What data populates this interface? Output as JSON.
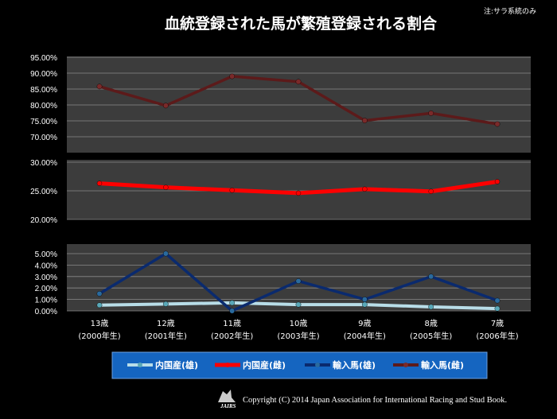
{
  "title": "血統登録された馬が繁殖登録される割合",
  "note": "注:サラ系統のみ",
  "copyright": "Copyright (C) 2014 Japan Association for International Racing and Stud Book.",
  "logo_text": "JAIRS",
  "colors": {
    "background": "#000000",
    "plot_bg": "#3c3c3c",
    "grid": "#8a8a8a",
    "legend_bg": "#1565c0"
  },
  "chart_data": {
    "type": "line",
    "categories": [
      {
        "age": "13歳",
        "year": "(2000年生)"
      },
      {
        "age": "12歳",
        "year": "(2001年生)"
      },
      {
        "age": "11歳",
        "year": "(2002年生)"
      },
      {
        "age": "10歳",
        "year": "(2003年生)"
      },
      {
        "age": "9歳",
        "year": "(2004年生)"
      },
      {
        "age": "8歳",
        "year": "(2005年生)"
      },
      {
        "age": "7歳",
        "year": "(2006年生)"
      }
    ],
    "series": [
      {
        "name": "内国産(雄)",
        "color": "#b8dde8",
        "marker": "#5aa8b8",
        "panel": 2,
        "values": [
          0.5,
          0.6,
          0.7,
          0.55,
          0.55,
          0.35,
          0.2
        ]
      },
      {
        "name": "内国産(雌)",
        "color": "#ff0000",
        "marker": "#ff0000",
        "panel": 1,
        "values": [
          26.3,
          25.6,
          25.1,
          24.6,
          25.3,
          24.9,
          26.6
        ]
      },
      {
        "name": "輸入馬(雄)",
        "color": "#0a2a6e",
        "marker": "#2a6a9e",
        "panel": 2,
        "values": [
          1.5,
          5.0,
          0.0,
          2.6,
          1.0,
          3.0,
          0.9
        ]
      },
      {
        "name": "輸入馬(雌)",
        "color": "#5c1a1a",
        "marker": "#7a2a2a",
        "panel": 0,
        "values": [
          85.8,
          79.8,
          89.0,
          87.3,
          75.1,
          77.4,
          74.0
        ]
      }
    ],
    "panels": [
      {
        "ylim": [
          70,
          95
        ],
        "ticks": [
          "95.00%",
          "90.00%",
          "85.00%",
          "80.00%",
          "75.00%",
          "70.00%"
        ],
        "tick_values": [
          95,
          90,
          85,
          80,
          75,
          70
        ]
      },
      {
        "ylim": [
          20,
          30
        ],
        "ticks": [
          "30.00%",
          "25.00%",
          "20.00%"
        ],
        "tick_values": [
          30,
          25,
          20
        ]
      },
      {
        "ylim": [
          0,
          5
        ],
        "ticks": [
          "5.00%",
          "4.00%",
          "3.00%",
          "2.00%",
          "1.00%",
          "0.00%"
        ],
        "tick_values": [
          5,
          4,
          3,
          2,
          1,
          0
        ]
      }
    ],
    "grid": true,
    "legend_position": "bottom"
  }
}
